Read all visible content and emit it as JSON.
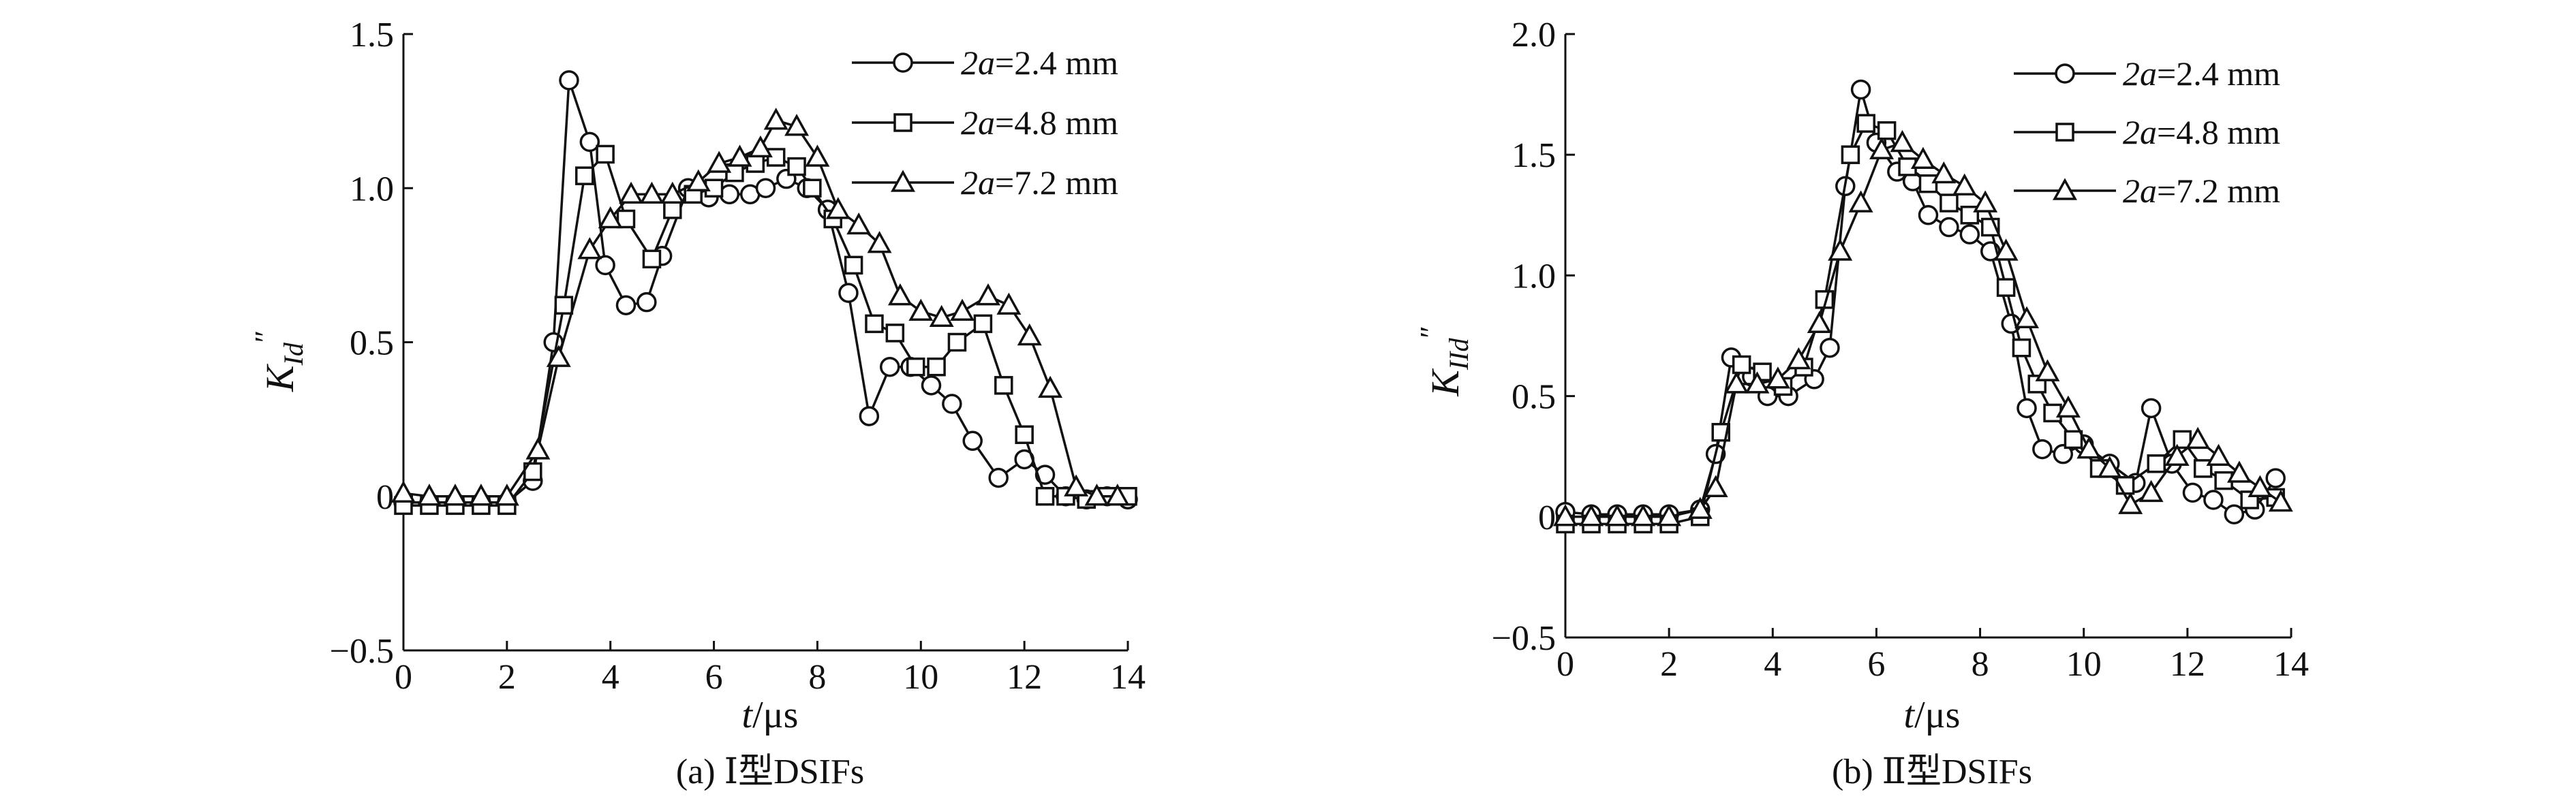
{
  "chart_data": [
    {
      "type": "line",
      "caption": "(a) Ⅰ型DSIFs",
      "xlabel_var": "t",
      "xlabel_unit": "/μs",
      "ylabel_main": "K",
      "ylabel_sub": "Id",
      "ylabel_sup": "″",
      "xlim": [
        0,
        14
      ],
      "ylim": [
        -0.5,
        1.5
      ],
      "xticks": [
        "0",
        "2",
        "4",
        "6",
        "8",
        "10",
        "12",
        "14"
      ],
      "yticks": [
        "−0.5",
        "0",
        "0.5",
        "1.0",
        "1.5"
      ],
      "xtick_values": [
        0,
        2,
        4,
        6,
        8,
        10,
        12,
        14
      ],
      "ytick_values": [
        -0.5,
        0,
        0.5,
        1.0,
        1.5
      ],
      "legend_position": "top-right",
      "series": [
        {
          "name_var": "2a",
          "name_value": "=2.4 mm",
          "marker": "circle",
          "points": [
            [
              0,
              -0.02
            ],
            [
              0.5,
              -0.02
            ],
            [
              1.0,
              -0.02
            ],
            [
              1.5,
              -0.02
            ],
            [
              2.0,
              -0.02
            ],
            [
              2.5,
              0.05
            ],
            [
              2.9,
              0.5
            ],
            [
              3.2,
              1.35
            ],
            [
              3.6,
              1.15
            ],
            [
              3.9,
              0.75
            ],
            [
              4.3,
              0.62
            ],
            [
              4.7,
              0.63
            ],
            [
              5.0,
              0.78
            ],
            [
              5.5,
              1.0
            ],
            [
              5.9,
              0.97
            ],
            [
              6.3,
              0.98
            ],
            [
              6.7,
              0.98
            ],
            [
              7.0,
              1.0
            ],
            [
              7.4,
              1.03
            ],
            [
              7.8,
              1.0
            ],
            [
              8.2,
              0.93
            ],
            [
              8.6,
              0.66
            ],
            [
              9.0,
              0.26
            ],
            [
              9.4,
              0.42
            ],
            [
              9.8,
              0.42
            ],
            [
              10.2,
              0.36
            ],
            [
              10.6,
              0.3
            ],
            [
              11.0,
              0.18
            ],
            [
              11.5,
              0.06
            ],
            [
              12.0,
              0.12
            ],
            [
              12.4,
              0.07
            ],
            [
              12.8,
              0.0
            ],
            [
              13.2,
              -0.01
            ],
            [
              13.6,
              0.0
            ],
            [
              14.0,
              -0.01
            ]
          ]
        },
        {
          "name_var": "2a",
          "name_value": "=4.8 mm",
          "marker": "square",
          "points": [
            [
              0,
              -0.03
            ],
            [
              0.5,
              -0.03
            ],
            [
              1.0,
              -0.03
            ],
            [
              1.5,
              -0.03
            ],
            [
              2.0,
              -0.03
            ],
            [
              2.5,
              0.08
            ],
            [
              3.1,
              0.62
            ],
            [
              3.5,
              1.04
            ],
            [
              3.9,
              1.11
            ],
            [
              4.3,
              0.9
            ],
            [
              4.8,
              0.77
            ],
            [
              5.2,
              0.93
            ],
            [
              5.6,
              0.98
            ],
            [
              6.0,
              1.0
            ],
            [
              6.4,
              1.05
            ],
            [
              6.8,
              1.08
            ],
            [
              7.2,
              1.1
            ],
            [
              7.6,
              1.07
            ],
            [
              7.9,
              1.0
            ],
            [
              8.3,
              0.9
            ],
            [
              8.7,
              0.75
            ],
            [
              9.1,
              0.56
            ],
            [
              9.5,
              0.53
            ],
            [
              9.9,
              0.42
            ],
            [
              10.3,
              0.42
            ],
            [
              10.7,
              0.5
            ],
            [
              11.2,
              0.56
            ],
            [
              11.6,
              0.36
            ],
            [
              12.0,
              0.2
            ],
            [
              12.4,
              0.0
            ],
            [
              12.8,
              0.0
            ],
            [
              13.2,
              -0.01
            ],
            [
              13.6,
              0.0
            ],
            [
              14.0,
              0.0
            ]
          ]
        },
        {
          "name_var": "2a",
          "name_value": "=7.2 mm",
          "marker": "triangle",
          "points": [
            [
              0,
              0.01
            ],
            [
              0.5,
              0.0
            ],
            [
              1.0,
              0.0
            ],
            [
              1.5,
              0.0
            ],
            [
              2.0,
              0.0
            ],
            [
              2.6,
              0.15
            ],
            [
              3.0,
              0.45
            ],
            [
              3.6,
              0.8
            ],
            [
              4.0,
              0.9
            ],
            [
              4.4,
              0.98
            ],
            [
              4.8,
              0.98
            ],
            [
              5.2,
              0.98
            ],
            [
              5.7,
              1.02
            ],
            [
              6.1,
              1.08
            ],
            [
              6.5,
              1.1
            ],
            [
              6.9,
              1.13
            ],
            [
              7.2,
              1.22
            ],
            [
              7.6,
              1.2
            ],
            [
              8.0,
              1.1
            ],
            [
              8.4,
              0.93
            ],
            [
              8.8,
              0.88
            ],
            [
              9.2,
              0.82
            ],
            [
              9.6,
              0.65
            ],
            [
              10.0,
              0.6
            ],
            [
              10.4,
              0.58
            ],
            [
              10.8,
              0.6
            ],
            [
              11.3,
              0.65
            ],
            [
              11.7,
              0.62
            ],
            [
              12.1,
              0.52
            ],
            [
              12.5,
              0.35
            ],
            [
              13.0,
              0.03
            ],
            [
              13.4,
              0.0
            ],
            [
              13.8,
              0.0
            ]
          ]
        }
      ]
    },
    {
      "type": "line",
      "caption": "(b) Ⅱ型DSIFs",
      "xlabel_var": "t",
      "xlabel_unit": "/μs",
      "ylabel_main": "K",
      "ylabel_sub": "IId",
      "ylabel_sup": "″",
      "xlim": [
        0,
        14
      ],
      "ylim": [
        -0.5,
        2.0
      ],
      "xticks": [
        "0",
        "2",
        "4",
        "6",
        "8",
        "10",
        "12",
        "14"
      ],
      "yticks": [
        "−0.5",
        "0",
        "0.5",
        "1.0",
        "1.5",
        "2.0"
      ],
      "xtick_values": [
        0,
        2,
        4,
        6,
        8,
        10,
        12,
        14
      ],
      "ytick_values": [
        -0.5,
        0,
        0.5,
        1.0,
        1.5,
        2.0
      ],
      "legend_position": "top-right",
      "series": [
        {
          "name_var": "2a",
          "name_value": "=2.4 mm",
          "marker": "circle",
          "points": [
            [
              0,
              0.02
            ],
            [
              0.5,
              0.01
            ],
            [
              1.0,
              0.01
            ],
            [
              1.5,
              0.01
            ],
            [
              2.0,
              0.01
            ],
            [
              2.6,
              0.03
            ],
            [
              2.9,
              0.26
            ],
            [
              3.2,
              0.66
            ],
            [
              3.6,
              0.58
            ],
            [
              3.9,
              0.5
            ],
            [
              4.3,
              0.5
            ],
            [
              4.8,
              0.57
            ],
            [
              5.1,
              0.7
            ],
            [
              5.4,
              1.37
            ],
            [
              5.7,
              1.77
            ],
            [
              6.0,
              1.55
            ],
            [
              6.4,
              1.43
            ],
            [
              6.7,
              1.39
            ],
            [
              7.0,
              1.25
            ],
            [
              7.4,
              1.2
            ],
            [
              7.8,
              1.17
            ],
            [
              8.2,
              1.1
            ],
            [
              8.6,
              0.8
            ],
            [
              8.9,
              0.45
            ],
            [
              9.2,
              0.28
            ],
            [
              9.6,
              0.26
            ],
            [
              10.0,
              0.3
            ],
            [
              10.5,
              0.22
            ],
            [
              11.0,
              0.14
            ],
            [
              11.3,
              0.45
            ],
            [
              11.7,
              0.22
            ],
            [
              12.1,
              0.1
            ],
            [
              12.5,
              0.07
            ],
            [
              12.9,
              0.01
            ],
            [
              13.3,
              0.03
            ],
            [
              13.7,
              0.16
            ]
          ]
        },
        {
          "name_var": "2a",
          "name_value": "=4.8 mm",
          "marker": "square",
          "points": [
            [
              0,
              -0.03
            ],
            [
              0.5,
              -0.03
            ],
            [
              1.0,
              -0.03
            ],
            [
              1.5,
              -0.03
            ],
            [
              2.0,
              -0.03
            ],
            [
              2.6,
              0.0
            ],
            [
              3.0,
              0.35
            ],
            [
              3.4,
              0.63
            ],
            [
              3.8,
              0.6
            ],
            [
              4.2,
              0.54
            ],
            [
              4.6,
              0.62
            ],
            [
              5.0,
              0.9
            ],
            [
              5.5,
              1.5
            ],
            [
              5.8,
              1.63
            ],
            [
              6.2,
              1.6
            ],
            [
              6.6,
              1.45
            ],
            [
              7.0,
              1.38
            ],
            [
              7.4,
              1.3
            ],
            [
              7.8,
              1.25
            ],
            [
              8.2,
              1.2
            ],
            [
              8.5,
              0.95
            ],
            [
              8.8,
              0.7
            ],
            [
              9.1,
              0.55
            ],
            [
              9.4,
              0.43
            ],
            [
              9.8,
              0.32
            ],
            [
              10.3,
              0.2
            ],
            [
              10.8,
              0.13
            ],
            [
              11.4,
              0.22
            ],
            [
              11.9,
              0.32
            ],
            [
              12.3,
              0.2
            ],
            [
              12.7,
              0.15
            ],
            [
              13.2,
              0.07
            ],
            [
              13.7,
              0.08
            ]
          ]
        },
        {
          "name_var": "2a",
          "name_value": "=7.2 mm",
          "marker": "triangle",
          "points": [
            [
              0,
              0.0
            ],
            [
              0.5,
              0.0
            ],
            [
              1.0,
              0.0
            ],
            [
              1.5,
              0.0
            ],
            [
              2.0,
              0.0
            ],
            [
              2.6,
              0.03
            ],
            [
              2.9,
              0.12
            ],
            [
              3.3,
              0.55
            ],
            [
              3.7,
              0.55
            ],
            [
              4.1,
              0.57
            ],
            [
              4.5,
              0.65
            ],
            [
              4.9,
              0.8
            ],
            [
              5.3,
              1.1
            ],
            [
              5.7,
              1.3
            ],
            [
              6.1,
              1.52
            ],
            [
              6.5,
              1.55
            ],
            [
              6.9,
              1.48
            ],
            [
              7.3,
              1.42
            ],
            [
              7.7,
              1.37
            ],
            [
              8.1,
              1.3
            ],
            [
              8.5,
              1.1
            ],
            [
              8.9,
              0.82
            ],
            [
              9.3,
              0.6
            ],
            [
              9.7,
              0.45
            ],
            [
              10.1,
              0.28
            ],
            [
              10.5,
              0.2
            ],
            [
              10.9,
              0.05
            ],
            [
              11.3,
              0.1
            ],
            [
              11.8,
              0.25
            ],
            [
              12.2,
              0.32
            ],
            [
              12.6,
              0.25
            ],
            [
              13.0,
              0.18
            ],
            [
              13.4,
              0.12
            ],
            [
              13.8,
              0.06
            ]
          ]
        }
      ]
    }
  ]
}
